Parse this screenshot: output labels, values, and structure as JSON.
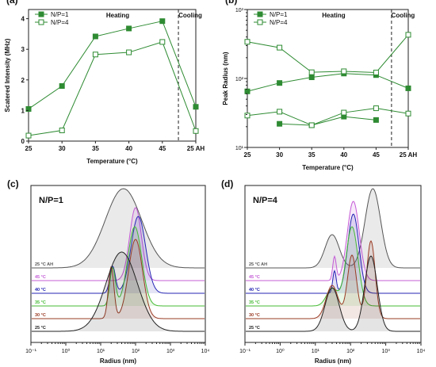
{
  "chart_data": [
    {
      "panel": "(a)",
      "type": "line",
      "xlabel": "Temperature (°C)",
      "ylabel": "Scatered Intensity (MHz)",
      "categories": [
        "25",
        "30",
        "35",
        "40",
        "45",
        "25 AH"
      ],
      "ylim": [
        0,
        4.3
      ],
      "yticks": [
        0,
        1,
        2,
        3,
        4
      ],
      "region_labels": [
        "Heating",
        "Cooling"
      ],
      "legend_position": "top-left",
      "series": [
        {
          "name": "N/P=1",
          "marker": "filled-square",
          "values": [
            1.05,
            1.8,
            3.42,
            3.68,
            3.92,
            1.12
          ]
        },
        {
          "name": "N/P=4",
          "marker": "open-square",
          "values": [
            0.18,
            0.35,
            2.83,
            2.9,
            3.24,
            0.33
          ]
        }
      ]
    },
    {
      "panel": "(b)",
      "type": "line",
      "xlabel": "Temperature (°C)",
      "ylabel": "Peak Radius (nm)",
      "categories": [
        "25",
        "30",
        "35",
        "40",
        "45",
        "25 AH"
      ],
      "yscale": "log",
      "ylim": [
        10,
        1000
      ],
      "ytick_labels": [
        "10¹",
        "10²",
        "10³"
      ],
      "region_labels": [
        "Heating",
        "Cooling"
      ],
      "legend_position": "top-left",
      "series": [
        {
          "name": "N/P=1",
          "marker": "filled-square",
          "values": [
            65,
            86,
            104,
            118,
            112,
            72
          ]
        },
        {
          "name": "N/P=1",
          "marker": "filled-square",
          "values": [
            null,
            22,
            21,
            28,
            25,
            null
          ]
        },
        {
          "name": "N/P=4",
          "marker": "open-square",
          "values": [
            340,
            280,
            123,
            127,
            122,
            430
          ]
        },
        {
          "name": "N/P=4",
          "marker": "open-square",
          "values": [
            29,
            33,
            21,
            32,
            37,
            31
          ]
        }
      ]
    },
    {
      "panel": "(c)",
      "type": "line",
      "title": "N/P=1",
      "xlabel": "Radius (nm)",
      "xscale": "log",
      "xlim": [
        0.1,
        10000
      ],
      "xtick_labels": [
        "10⁻¹",
        "10⁰",
        "10¹",
        "10²",
        "10³",
        "10⁴"
      ],
      "trace_labels": [
        "25 °C AH",
        "45 °C",
        "40 °C",
        "35 °C",
        "30 °C",
        "25 °C"
      ],
      "series": [
        {
          "name": "25 °C AH",
          "color": "#555555",
          "peaks": [
            {
              "x": 45,
              "height": 1.0,
              "width": 0.52
            }
          ]
        },
        {
          "name": "45 °C",
          "color": "#c45bd6",
          "peaks": [
            {
              "x": 100,
              "height": 0.92,
              "width": 0.17
            }
          ]
        },
        {
          "name": "40 °C",
          "color": "#2424b4",
          "peaks": [
            {
              "x": 120,
              "height": 0.97,
              "width": 0.21
            },
            {
              "x": 22,
              "height": 0.34,
              "width": 0.08
            }
          ]
        },
        {
          "name": "35 °C",
          "color": "#44bb33",
          "peaks": [
            {
              "x": 95,
              "height": 1.0,
              "width": 0.2
            },
            {
              "x": 22,
              "height": 0.48,
              "width": 0.08
            }
          ]
        },
        {
          "name": "30 °C",
          "color": "#9a3b24",
          "peaks": [
            {
              "x": 100,
              "height": 1.0,
              "width": 0.2
            },
            {
              "x": 20,
              "height": 0.65,
              "width": 0.08
            }
          ]
        },
        {
          "name": "25 °C",
          "color": "#222222",
          "peaks": [
            {
              "x": 40,
              "height": 1.0,
              "width": 0.45
            }
          ]
        }
      ]
    },
    {
      "panel": "(d)",
      "type": "line",
      "title": "N/P=4",
      "xlabel": "Radius (nm)",
      "xscale": "log",
      "xlim": [
        0.1,
        10000
      ],
      "xtick_labels": [
        "10⁻¹",
        "10⁰",
        "10¹",
        "10²",
        "10³",
        "10⁴"
      ],
      "trace_labels": [
        "25 °C AH",
        "45 °C",
        "40 °C",
        "35 °C",
        "30 °C",
        "25 °C"
      ],
      "series": [
        {
          "name": "25 °C AH",
          "color": "#555555",
          "peaks": [
            {
              "x": 430,
              "height": 1.0,
              "width": 0.22
            },
            {
              "x": 30,
              "height": 0.42,
              "width": 0.2
            }
          ]
        },
        {
          "name": "45 °C",
          "color": "#c45bd6",
          "peaks": [
            {
              "x": 120,
              "height": 1.0,
              "width": 0.17
            },
            {
              "x": 35,
              "height": 0.3,
              "width": 0.05
            }
          ]
        },
        {
          "name": "40 °C",
          "color": "#2424b4",
          "peaks": [
            {
              "x": 120,
              "height": 1.0,
              "width": 0.16
            },
            {
              "x": 35,
              "height": 0.28,
              "width": 0.05
            }
          ]
        },
        {
          "name": "35 °C",
          "color": "#44bb33",
          "peaks": [
            {
              "x": 110,
              "height": 1.0,
              "width": 0.17
            },
            {
              "x": 30,
              "height": 0.22,
              "width": 0.16
            }
          ]
        },
        {
          "name": "30 °C",
          "color": "#9a3b24",
          "peaks": [
            {
              "x": 380,
              "height": 0.98,
              "width": 0.12
            },
            {
              "x": 110,
              "height": 0.8,
              "width": 0.13
            },
            {
              "x": 30,
              "height": 0.42,
              "width": 0.17
            }
          ]
        },
        {
          "name": "25 °C",
          "color": "#222222",
          "peaks": [
            {
              "x": 380,
              "height": 0.95,
              "width": 0.18
            },
            {
              "x": 30,
              "height": 0.55,
              "width": 0.2
            }
          ]
        }
      ]
    }
  ]
}
